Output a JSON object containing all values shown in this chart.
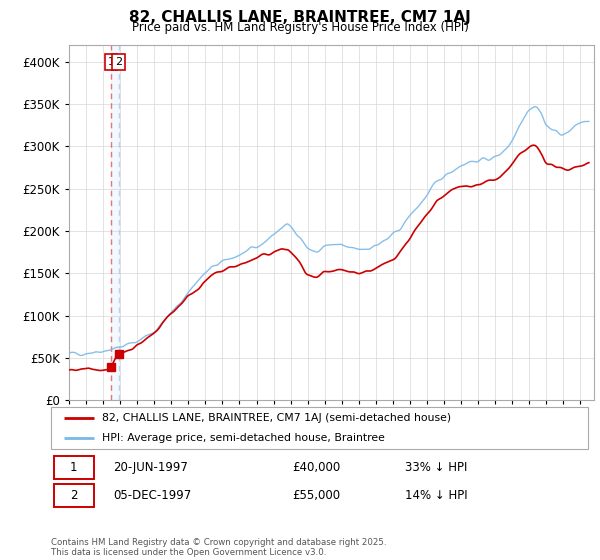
{
  "title": "82, CHALLIS LANE, BRAINTREE, CM7 1AJ",
  "subtitle": "Price paid vs. HM Land Registry's House Price Index (HPI)",
  "legend_entry1": "82, CHALLIS LANE, BRAINTREE, CM7 1AJ (semi-detached house)",
  "legend_entry2": "HPI: Average price, semi-detached house, Braintree",
  "transaction1_date": "20-JUN-1997",
  "transaction1_price": "£40,000",
  "transaction1_hpi": "33% ↓ HPI",
  "transaction2_date": "05-DEC-1997",
  "transaction2_price": "£55,000",
  "transaction2_hpi": "14% ↓ HPI",
  "footer": "Contains HM Land Registry data © Crown copyright and database right 2025.\nThis data is licensed under the Open Government Licence v3.0.",
  "hpi_color": "#7ab8e8",
  "price_color": "#cc0000",
  "vline1_color": "#e06060",
  "vline2_color": "#b0ccee",
  "ylim": [
    0,
    420000
  ],
  "yticks": [
    0,
    50000,
    100000,
    150000,
    200000,
    250000,
    300000,
    350000,
    400000
  ],
  "xlim_start": 1995.0,
  "xlim_end": 2025.8,
  "tx1_x": 1997.47,
  "tx1_y": 40000,
  "tx2_x": 1997.92,
  "tx2_y": 55000
}
